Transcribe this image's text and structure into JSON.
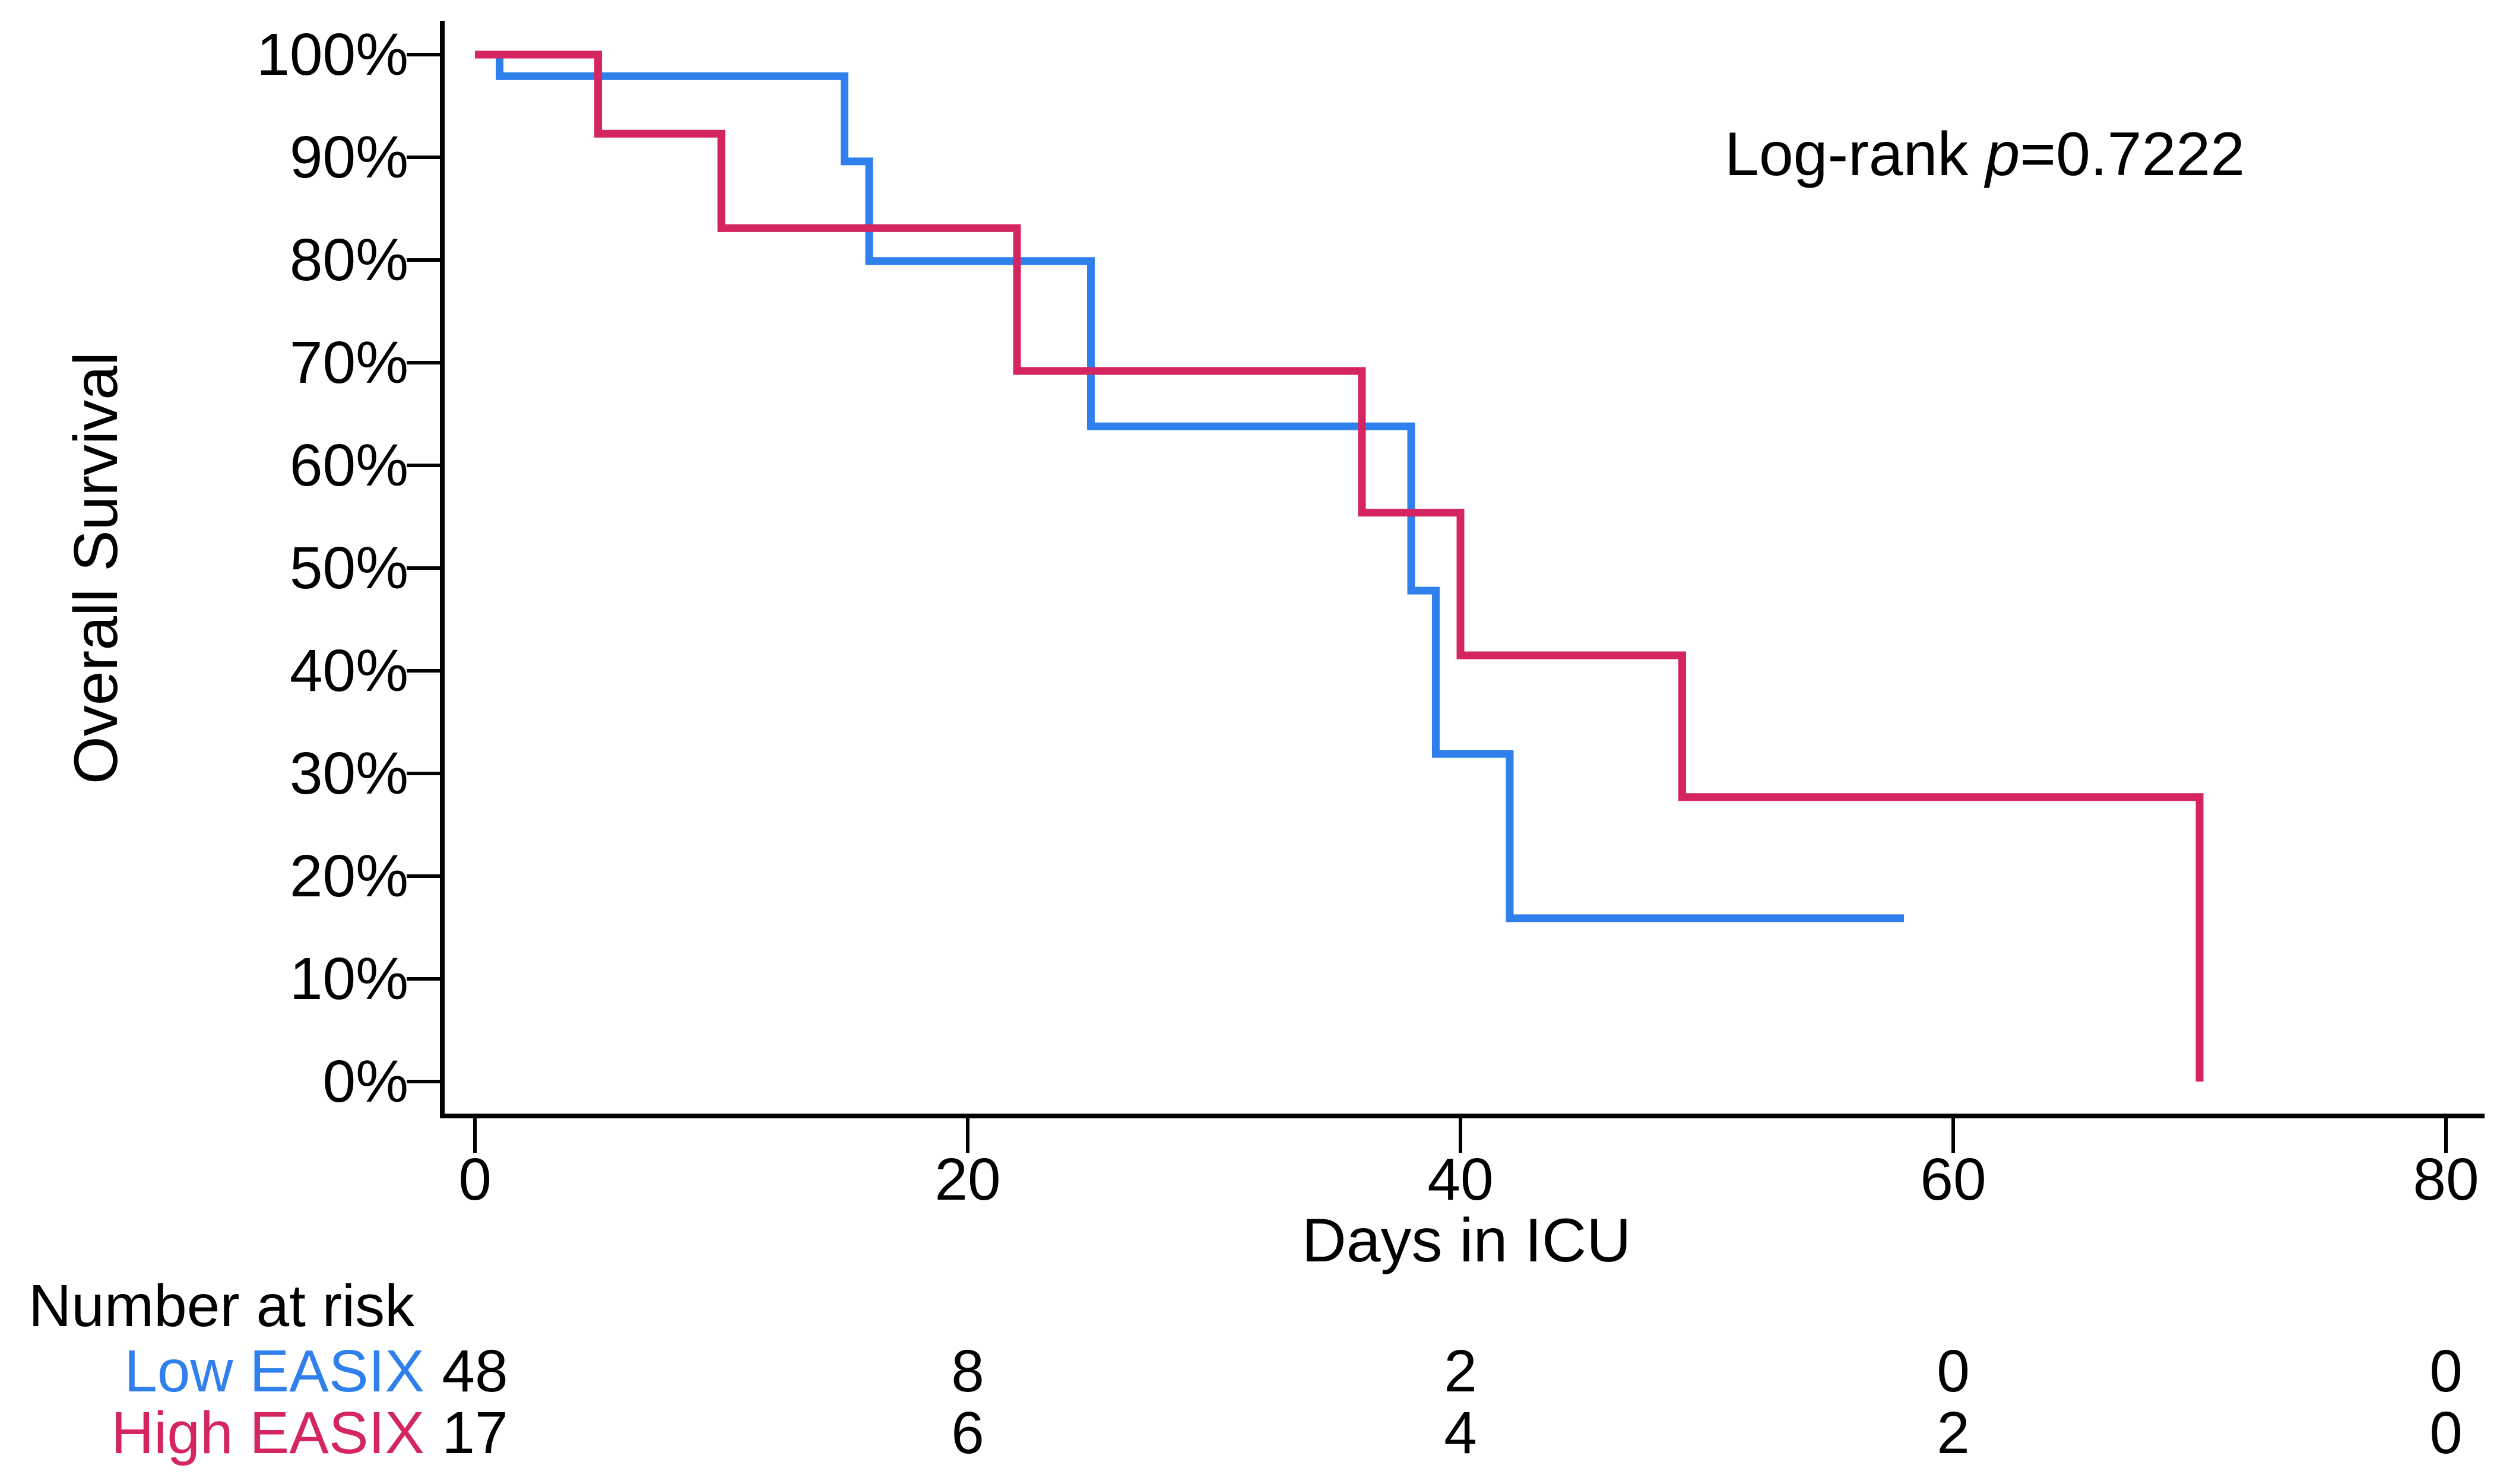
{
  "chart_data": {
    "type": "line",
    "variant": "kaplan-meier-step",
    "title": "",
    "xlabel": "Days in ICU",
    "ylabel": "Overall Survival",
    "xlim": [
      0,
      80
    ],
    "ylim": [
      0,
      100
    ],
    "grid": false,
    "x_ticks": [
      {
        "value": 0,
        "label": "0"
      },
      {
        "value": 20,
        "label": "20"
      },
      {
        "value": 40,
        "label": "40"
      },
      {
        "value": 60,
        "label": "60"
      },
      {
        "value": 80,
        "label": "80"
      }
    ],
    "y_ticks": [
      {
        "value": 100,
        "label": "100%"
      },
      {
        "value": 90,
        "label": "90%"
      },
      {
        "value": 80,
        "label": "80%"
      },
      {
        "value": 70,
        "label": "70%"
      },
      {
        "value": 60,
        "label": "60%"
      },
      {
        "value": 50,
        "label": "50%"
      },
      {
        "value": 40,
        "label": "40%"
      },
      {
        "value": 30,
        "label": "30%"
      },
      {
        "value": 20,
        "label": "20%"
      },
      {
        "value": 10,
        "label": "10%"
      },
      {
        "value": 0,
        "label": "0%"
      }
    ],
    "annotation": {
      "prefix": "Log-rank ",
      "italic": "p",
      "suffix": "=0.7222"
    },
    "series": [
      {
        "name": "Low EASIX",
        "color": "#2F80EC",
        "steps_days_percent": [
          [
            0,
            100
          ],
          [
            1,
            97.9
          ],
          [
            15,
            89.6
          ],
          [
            16,
            79.9
          ],
          [
            25,
            63.8
          ],
          [
            38,
            47.8
          ],
          [
            39,
            31.9
          ],
          [
            42,
            15.9
          ],
          [
            58,
            15.9
          ]
        ]
      },
      {
        "name": "High EASIX",
        "color": "#D42562",
        "steps_days_percent": [
          [
            0,
            100
          ],
          [
            5,
            92.3
          ],
          [
            10,
            83.1
          ],
          [
            22,
            69.2
          ],
          [
            36,
            55.4
          ],
          [
            40,
            41.5
          ],
          [
            49,
            27.7
          ],
          [
            70,
            27.7
          ],
          [
            70,
            0
          ]
        ]
      }
    ],
    "risk_table": {
      "title": "Number at risk",
      "times": [
        0,
        20,
        40,
        60,
        80
      ],
      "rows": [
        {
          "label": "Low EASIX",
          "color": "#2F80EC",
          "values": [
            "48",
            "8",
            "2",
            "0",
            "0"
          ]
        },
        {
          "label": "High EASIX",
          "color": "#D42562",
          "values": [
            "17",
            "6",
            "4",
            "2",
            "0"
          ]
        }
      ]
    },
    "axis_color": "#000000"
  }
}
